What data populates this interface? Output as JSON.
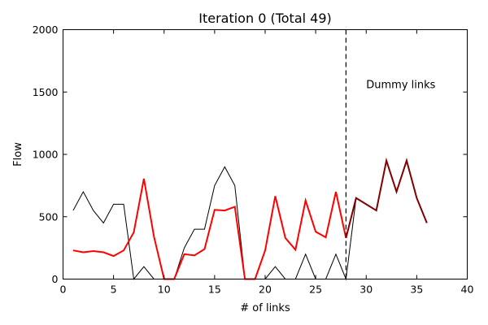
{
  "chart_data": {
    "type": "line",
    "title": "Iteration 0 (Total 49)",
    "xlabel": "# of links",
    "ylabel": "Flow",
    "xlim": [
      0,
      40
    ],
    "ylim": [
      0,
      2000
    ],
    "x_ticks": [
      0,
      5,
      10,
      15,
      20,
      25,
      30,
      35,
      40
    ],
    "y_ticks": [
      0,
      500,
      1000,
      1500,
      2000
    ],
    "grid": false,
    "vline": {
      "x": 28,
      "style": "dashed",
      "color": "#000000"
    },
    "annotation": {
      "text": "Dummy links",
      "x": 30,
      "y": 1530
    },
    "series": [
      {
        "color": "#000000",
        "width": 1,
        "x": [
          1,
          2,
          3,
          4,
          5,
          6,
          7,
          8,
          9,
          10,
          11,
          12,
          13,
          14,
          15,
          16,
          17,
          18,
          19,
          20,
          21,
          22,
          23,
          24,
          25,
          26,
          27,
          28,
          29,
          30,
          31,
          32,
          33,
          34,
          35,
          36
        ],
        "y": [
          550,
          700,
          550,
          450,
          600,
          600,
          0,
          100,
          0,
          0,
          0,
          250,
          400,
          400,
          750,
          900,
          750,
          0,
          0,
          0,
          100,
          0,
          0,
          200,
          0,
          0,
          200,
          0,
          650,
          600,
          550,
          950,
          700,
          950,
          650,
          450
        ]
      },
      {
        "color": "#ff0000",
        "width": 2,
        "x": [
          1,
          2,
          3,
          4,
          5,
          6,
          7,
          8,
          9,
          10,
          11,
          12,
          13,
          14,
          15,
          16,
          17,
          18,
          19,
          20,
          21,
          22,
          23,
          24,
          25,
          26,
          27,
          28
        ],
        "y": [
          230,
          215,
          225,
          215,
          185,
          230,
          375,
          805,
          340,
          0,
          0,
          200,
          190,
          240,
          555,
          550,
          580,
          0,
          0,
          230,
          665,
          330,
          235,
          630,
          380,
          335,
          700,
          330
        ]
      },
      {
        "color": "#800000",
        "width": 2,
        "x": [
          28,
          29,
          30,
          31,
          32,
          33,
          34,
          35,
          36
        ],
        "y": [
          330,
          650,
          600,
          550,
          950,
          700,
          950,
          650,
          450
        ]
      }
    ]
  }
}
